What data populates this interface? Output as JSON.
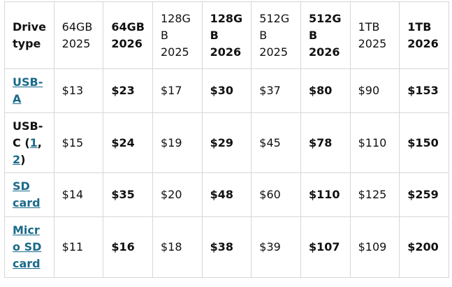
{
  "table": {
    "header": [
      "Drive type",
      "64GB 2025",
      "64GB 2026",
      "128GB 2025",
      "128GB 2026",
      "512GB 2025",
      "512GB 2026",
      "1TB 2025",
      "1TB 2026"
    ],
    "rows": [
      {
        "label": [
          "USB-A"
        ],
        "cells": [
          "$13",
          "$23",
          "$17",
          "$30",
          "$37",
          "$80",
          "$90",
          "$153"
        ]
      },
      {
        "label": [
          "USB-C (",
          "1",
          ", ",
          "2",
          ")"
        ],
        "cells": [
          "$15",
          "$24",
          "$19",
          "$29",
          "$45",
          "$78",
          "$110",
          "$150"
        ]
      },
      {
        "label": [
          "SD card"
        ],
        "cells": [
          "$14",
          "$35",
          "$20",
          "$48",
          "$60",
          "$110",
          "$125",
          "$259"
        ]
      },
      {
        "label": [
          "Micro SD card"
        ],
        "cells": [
          "$11",
          "$16",
          "$18",
          "$38",
          "$39",
          "$107",
          "$109",
          "$200"
        ]
      }
    ]
  }
}
